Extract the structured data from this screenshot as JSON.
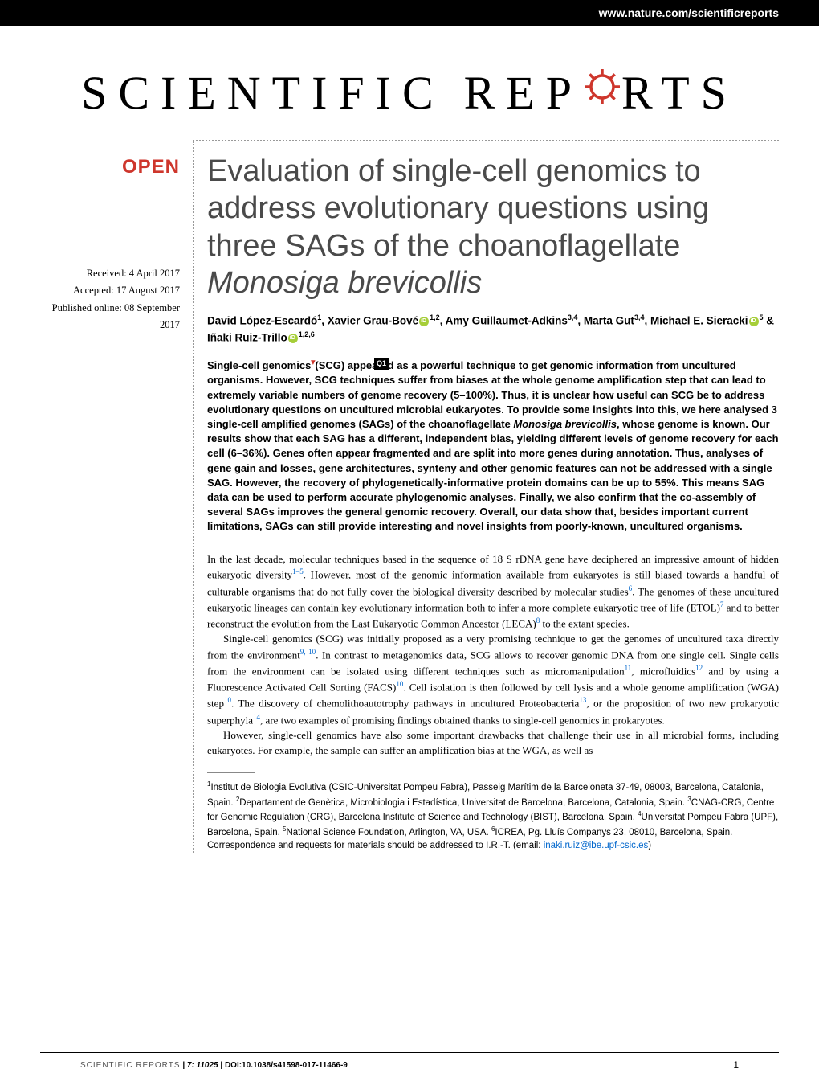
{
  "header": {
    "url": "www.nature.com/scientificreports"
  },
  "logo": {
    "part1": "SCIENTIFIC",
    "part2": "REP",
    "part3": "RTS",
    "gear_color": "#ce362c"
  },
  "badge": {
    "open": "OPEN"
  },
  "dates": {
    "received": "Received: 4 April 2017",
    "accepted": "Accepted: 17 August 2017",
    "published": "Published online: 08 September 2017"
  },
  "title": {
    "line1": "Evaluation of single-cell genomics to address evolutionary questions using three SAGs of the choanoflagellate ",
    "species": "Monosiga brevicollis"
  },
  "authors_html": "David López-Escardó<sup>1</sup>, Xavier Grau-Bové<span class='orcid'></span><sup>1,2</sup>, Amy Guillaumet-Adkins<sup>3,4</sup>, Marta Gut<sup>3,4</sup>, Michael E. Sieracki<span class='orcid'></span><sup>5</sup> & Iñaki Ruiz-Trillo<span class='orcid'></span><sup>1,2,6</sup>",
  "q_marker": "Q1",
  "abstract": "Single-cell genomics<span class='caret-red'>▾</span>(SCG) appeared as a powerful technique to get genomic information from uncultured organisms. However, SCG techniques suffer from biases at the whole genome amplification step that can lead to extremely variable numbers of genome recovery (5–100%). Thus, it is unclear how useful can SCG be to address evolutionary questions on uncultured microbial eukaryotes. To provide some insights into this, we here analysed 3 single-cell amplified genomes (SAGs) of the choanoflagellate <span class='species'>Monosiga brevicollis</span>, whose genome is known. Our results show that each SAG has a different, independent bias, yielding different levels of genome recovery for each cell (6–36%). Genes often appear fragmented and are split into more genes during annotation. Thus, analyses of gene gain and losses, gene architectures, synteny and other genomic features can not be addressed with a single SAG. However, the recovery of phylogenetically-informative protein domains can be up to 55%. This means SAG data can be used to perform accurate phylogenomic analyses. Finally, we also confirm that the co-assembly of several SAGs improves the general genomic recovery. Overall, our data show that, besides important current limitations, SAGs can still provide interesting and novel insights from poorly-known, uncultured organisms.",
  "body": {
    "p1": "In the last decade, molecular techniques based in the sequence of 18 S rDNA gene have deciphered an impressive amount of hidden eukaryotic diversity<sup>1–5</sup>. However, most of the genomic information available from eukaryotes is still biased towards a handful of culturable organisms that do not fully cover the biological diversity described by molecular studies<sup>6</sup>. The genomes of these uncultured eukaryotic lineages can contain key evolutionary information both to infer a more complete eukaryotic tree of life (ETOL)<sup>7</sup> and to better reconstruct the evolution from the Last Eukaryotic Common Ancestor (LECA)<sup>8</sup> to the extant species.",
    "p2": "Single-cell genomics (SCG) was initially proposed as a very promising technique to get the genomes of uncultured taxa directly from the environment<sup>9, 10</sup>. In contrast to metagenomics data, SCG allows to recover genomic DNA from one single cell. Single cells from the environment can be isolated using different techniques such as micromanipulation<sup>11</sup>, microfluidics<sup>12</sup> and by using a Fluorescence Activated Cell Sorting (FACS)<sup>10</sup>. Cell isolation is then followed by cell lysis and a whole genome amplification (WGA) step<sup>10</sup>. The discovery of chemolithoautotrophy pathways in uncultured Proteobacteria<sup>13</sup>, or the proposition of two new prokaryotic superphyla<sup>14</sup>, are two examples of promising findings obtained thanks to single-cell genomics in prokaryotes.",
    "p3": "However, single-cell genomics have also some important drawbacks that challenge their use in all microbial forms, including eukaryotes. For example, the sample can suffer an amplification bias at the WGA, as well as"
  },
  "affiliations": "<sup>1</sup>Institut de Biologia Evolutiva (CSIC-Universitat Pompeu Fabra), Passeig Marítim de la Barceloneta 37-49, 08003, Barcelona, Catalonia, Spain. <sup>2</sup>Departament de Genètica, Microbiologia i Estadística, Universitat de Barcelona, Barcelona, Catalonia, Spain. <sup>3</sup>CNAG-CRG, Centre for Genomic Regulation (CRG), Barcelona Institute of Science and Technology (BIST), Barcelona, Spain. <sup>4</sup>Universitat Pompeu Fabra (UPF), Barcelona, Spain. <sup>5</sup>National Science Foundation, Arlington, VA, USA. <sup>6</sup>ICREA, Pg. Lluís Companys 23, 08010, Barcelona, Spain. Correspondence and requests for materials should be addressed to I.R.-T. (email: <span class='email-link'>inaki.ruiz@ibe.upf-csic.es</span>)",
  "footer": {
    "journal": "SCIENTIFIC REPORTS",
    "citation": " | 7: 11025 ",
    "doi": " | DOI:10.1038/s41598-017-11466-9",
    "page": "1"
  }
}
